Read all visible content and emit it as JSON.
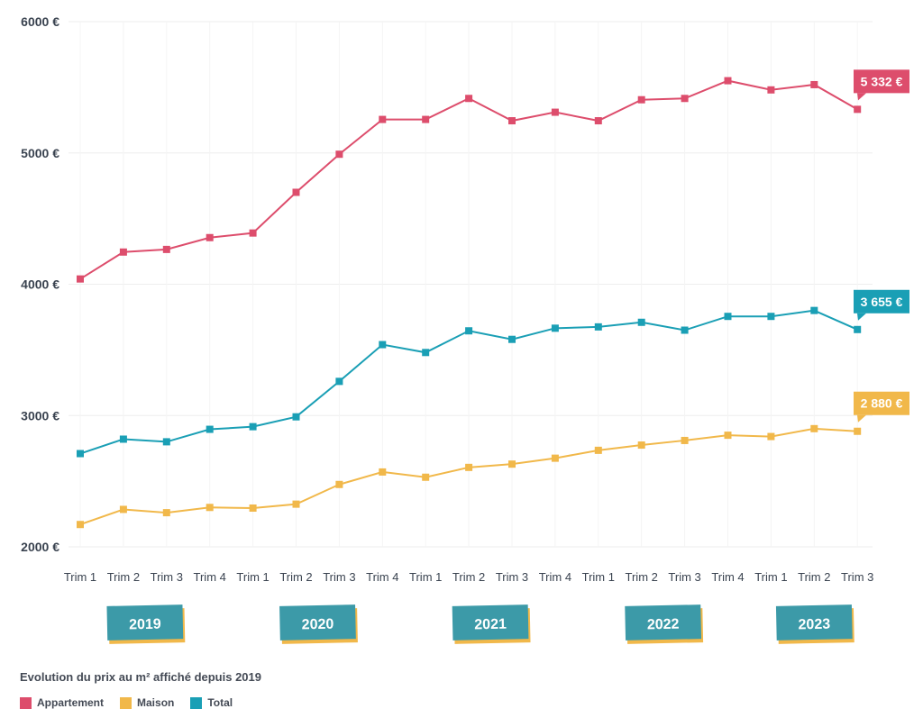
{
  "chart_data": {
    "type": "line",
    "title": "Evolution du prix au m² affiché depuis 2019",
    "x": [
      "Trim 1",
      "Trim 2",
      "Trim 3",
      "Trim 4",
      "Trim 1",
      "Trim 2",
      "Trim 3",
      "Trim 4",
      "Trim 1",
      "Trim 2",
      "Trim 3",
      "Trim 4",
      "Trim 1",
      "Trim 2",
      "Trim 3",
      "Trim 4",
      "Trim 1",
      "Trim 2",
      "Trim 3"
    ],
    "years": [
      {
        "label": "2019",
        "quarters": 4
      },
      {
        "label": "2020",
        "quarters": 4
      },
      {
        "label": "2021",
        "quarters": 4
      },
      {
        "label": "2022",
        "quarters": 4
      },
      {
        "label": "2023",
        "quarters": 3
      }
    ],
    "y_ticks": [
      "2000 €",
      "3000 €",
      "4000 €",
      "5000 €",
      "6000 €"
    ],
    "ylim": [
      2000,
      6000
    ],
    "grid": true,
    "legend_position": "bottom-left",
    "series": [
      {
        "name": "Appartement",
        "color": "#dd4d6c",
        "end_label": "5 332 €",
        "values": [
          4040,
          4245,
          4265,
          4355,
          4390,
          4700,
          4990,
          5255,
          5255,
          5415,
          5245,
          5310,
          5245,
          5405,
          5415,
          5550,
          5480,
          5520,
          5332
        ]
      },
      {
        "name": "Maison",
        "color": "#f1b84a",
        "end_label": "2 880 €",
        "values": [
          2170,
          2285,
          2260,
          2300,
          2295,
          2325,
          2475,
          2570,
          2530,
          2605,
          2630,
          2675,
          2735,
          2775,
          2810,
          2850,
          2840,
          2900,
          2880
        ]
      },
      {
        "name": "Total",
        "color": "#1a9fb5",
        "end_label": "3 655 €",
        "values": [
          2710,
          2820,
          2800,
          2895,
          2915,
          2990,
          3260,
          3540,
          3480,
          3645,
          3580,
          3665,
          3675,
          3710,
          3650,
          3755,
          3755,
          3800,
          3655
        ]
      }
    ]
  },
  "colors": {
    "axis_text": "#3a4350",
    "grid": "#eeeeee",
    "year_badge": "#3c9aa8",
    "year_badge_shadow": "#f1b84a",
    "year_text": "#ffffff"
  }
}
